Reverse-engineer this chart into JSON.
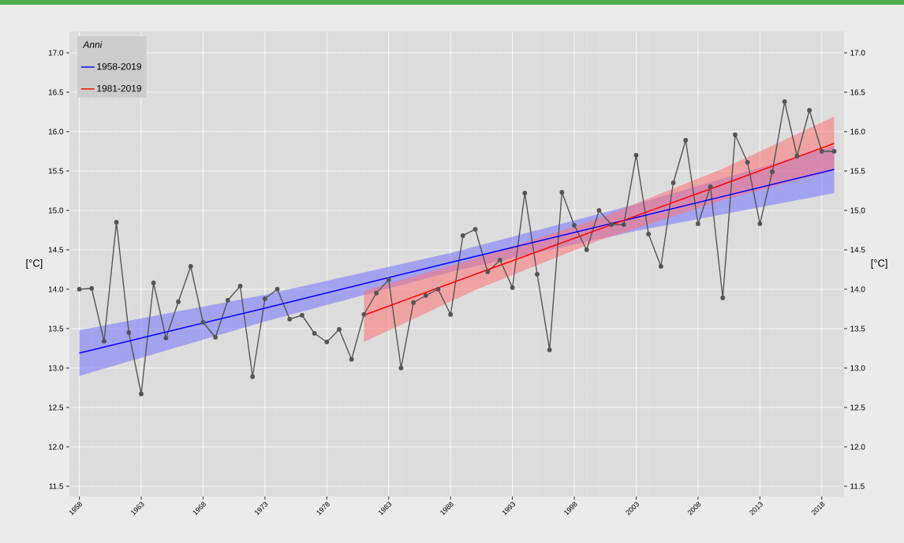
{
  "chart_data": {
    "type": "line",
    "legend_title": "Anni",
    "ylabel": "[°C]",
    "y2label": "[°C]",
    "x": [
      1958,
      1959,
      1960,
      1961,
      1962,
      1963,
      1964,
      1965,
      1966,
      1967,
      1968,
      1969,
      1970,
      1971,
      1972,
      1973,
      1974,
      1975,
      1976,
      1977,
      1978,
      1979,
      1980,
      1981,
      1982,
      1983,
      1984,
      1985,
      1986,
      1987,
      1988,
      1989,
      1990,
      1991,
      1992,
      1993,
      1994,
      1995,
      1996,
      1997,
      1998,
      1999,
      2000,
      2001,
      2002,
      2003,
      2004,
      2005,
      2006,
      2007,
      2008,
      2009,
      2010,
      2011,
      2012,
      2013,
      2014,
      2015,
      2016,
      2017,
      2018,
      2019
    ],
    "xlim": [
      1957.2,
      2019.8
    ],
    "xticks": [
      1958,
      1963,
      1968,
      1973,
      1978,
      1983,
      1988,
      1993,
      1998,
      2003,
      2008,
      2013,
      2018
    ],
    "ylim": [
      11.37,
      17.27
    ],
    "yticks": [
      {
        "value": 11.5,
        "label": "11.5"
      },
      {
        "value": 12,
        "label": "12.0"
      },
      {
        "value": 12.5,
        "label": "12.5"
      },
      {
        "value": 13,
        "label": "13.0"
      },
      {
        "value": 13.5,
        "label": "13.5"
      },
      {
        "value": 14,
        "label": "14.0"
      },
      {
        "value": 14.5,
        "label": "14.5"
      },
      {
        "value": 15,
        "label": "15.0"
      },
      {
        "value": 15.5,
        "label": "15.5"
      },
      {
        "value": 16,
        "label": "16.0"
      },
      {
        "value": 16.5,
        "label": "16.5"
      },
      {
        "value": 17,
        "label": "17.0"
      }
    ],
    "y2lim": [
      11.37,
      17.27
    ],
    "y2ticks": [
      {
        "value": 11.5,
        "label": "11.5"
      },
      {
        "value": 12,
        "label": "12.0"
      },
      {
        "value": 12.5,
        "label": "12.5"
      },
      {
        "value": 13,
        "label": "13.0"
      },
      {
        "value": 13.5,
        "label": "13.5"
      },
      {
        "value": 14,
        "label": "14.0"
      },
      {
        "value": 14.5,
        "label": "14.5"
      },
      {
        "value": 15,
        "label": "15.0"
      },
      {
        "value": 15.5,
        "label": "15.5"
      },
      {
        "value": 16,
        "label": "16.0"
      },
      {
        "value": 16.5,
        "label": "16.5"
      },
      {
        "value": 17,
        "label": "17.0"
      }
    ],
    "grid": true,
    "legend": "top left",
    "series": [
      {
        "color": "#555555",
        "marker": "circle",
        "values": [
          14.0,
          14.01,
          13.34,
          14.85,
          13.45,
          12.67,
          14.08,
          13.38,
          13.84,
          14.29,
          13.58,
          13.39,
          13.86,
          14.04,
          12.89,
          13.88,
          14.0,
          13.62,
          13.67,
          13.44,
          13.33,
          13.49,
          13.11,
          13.68,
          13.95,
          14.12,
          13.0,
          13.83,
          13.92,
          14.0,
          13.68,
          14.68,
          14.76,
          14.22,
          14.37,
          14.02,
          15.22,
          14.19,
          13.23,
          15.23,
          14.81,
          14.5,
          15.0,
          14.82,
          14.82,
          15.7,
          14.7,
          14.29,
          15.35,
          15.89,
          14.83,
          15.3,
          13.89,
          15.96,
          15.61,
          14.83,
          15.49,
          16.38,
          15.69,
          16.27,
          15.75,
          15.75
        ]
      },
      {
        "name": "1958-2019",
        "color": "#0000ff",
        "marker": "none",
        "x": [
          1958,
          1973,
          1988,
          2003,
          2019
        ],
        "values": [
          13.19,
          13.76,
          14.34,
          14.91,
          15.52
        ],
        "lower": [
          12.9,
          13.59,
          14.22,
          14.74,
          15.22
        ],
        "upper": [
          13.48,
          13.93,
          14.46,
          15.08,
          15.82
        ]
      },
      {
        "name": "1981-2019",
        "color": "#ff0000",
        "marker": "none",
        "x": [
          1981,
          1990,
          2000,
          2010,
          2019
        ],
        "values": [
          13.67,
          14.19,
          14.76,
          15.33,
          15.85
        ],
        "lower": [
          13.33,
          13.99,
          14.62,
          15.13,
          15.51
        ],
        "upper": [
          13.98,
          14.39,
          14.9,
          15.53,
          16.19
        ]
      }
    ]
  }
}
